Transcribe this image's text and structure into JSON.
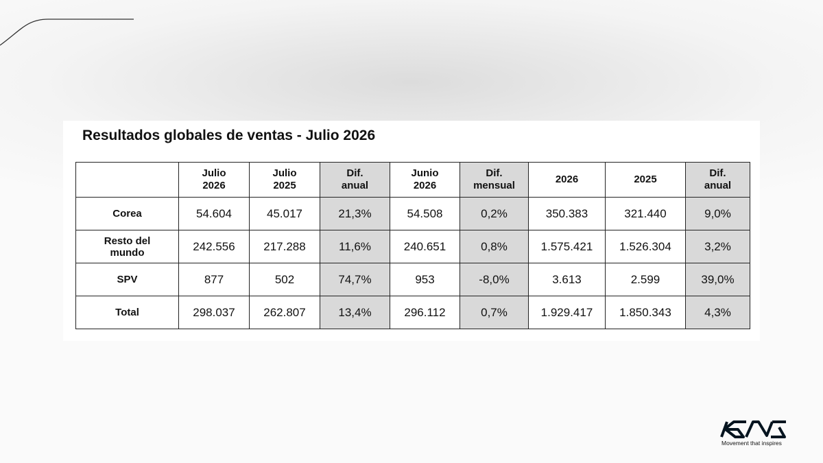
{
  "title": "Resultados globales de ventas - Julio 2026",
  "table": {
    "header": [
      "",
      "Julio\n2026",
      "Julio\n2025",
      "Dif.\nanual",
      "Junio\n2026",
      "Dif.\nmensual",
      "2026",
      "2025",
      "Dif.\nanual"
    ],
    "rows": [
      [
        "Corea",
        "54.604",
        "45.017",
        "21,3%",
        "54.508",
        "0,2%",
        "350.383",
        "321.440",
        "9,0%"
      ],
      [
        "Resto del\nmundo",
        "242.556",
        "217.288",
        "11,6%",
        "240.651",
        "0,8%",
        "1.575.421",
        "1.526.304",
        "3,2%"
      ],
      [
        "SPV",
        "877",
        "502",
        "74,7%",
        "953",
        "-8,0%",
        "3.613",
        "2.599",
        "39,0%"
      ],
      [
        "Total",
        "298.037",
        "262.807",
        "13,4%",
        "296.112",
        "0,7%",
        "1.929.417",
        "1.850.343",
        "4,3%"
      ]
    ]
  },
  "footer": {
    "tagline": "Movement that inspires"
  }
}
